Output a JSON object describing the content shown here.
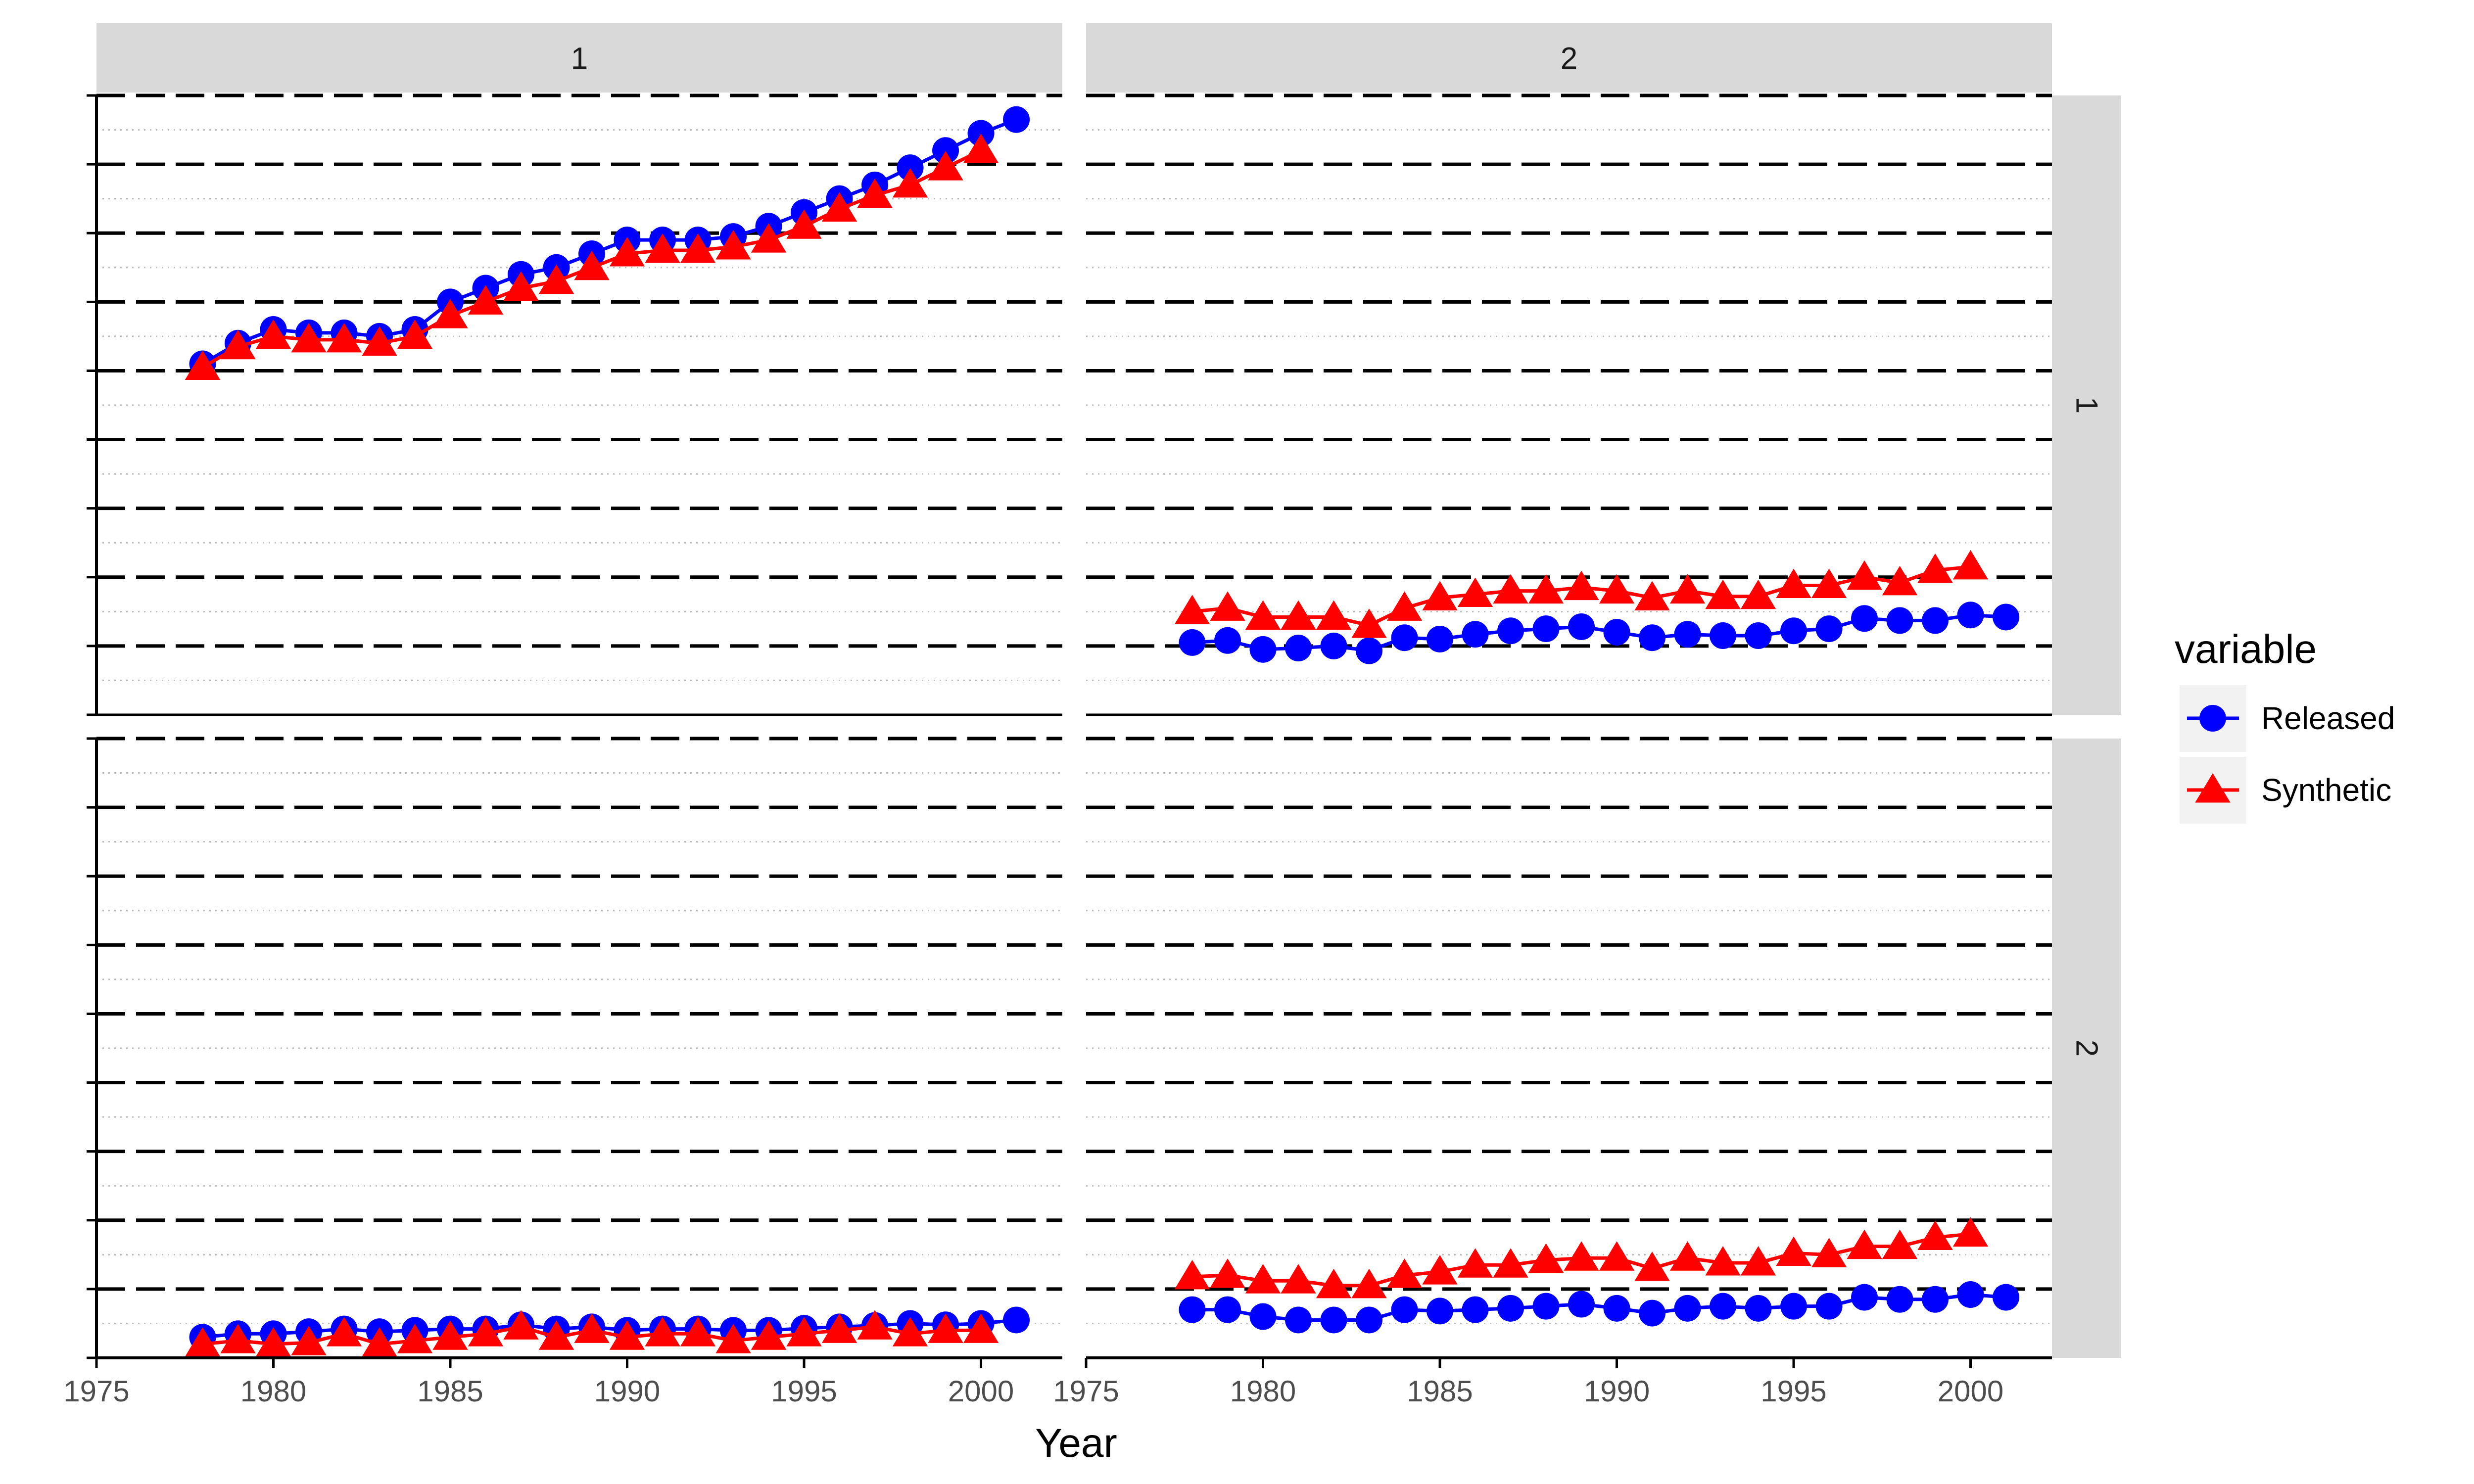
{
  "chart_data": {
    "type": "line",
    "xlabel": "Year",
    "ylabel": "",
    "xlim": [
      1975,
      2002.3
    ],
    "ylim": [
      0,
      9
    ],
    "x_ticks": [
      1975,
      1980,
      1985,
      1990,
      1995,
      2000
    ],
    "y_grid_major": [
      1,
      2,
      3,
      4,
      5,
      6,
      7,
      8,
      9
    ],
    "y_axis_tick_labels": "none",
    "grid": true,
    "legend": {
      "title": "variable",
      "placement": "right",
      "entries": [
        {
          "name": "Released",
          "color": "#0000ff",
          "marker": "circle"
        },
        {
          "name": "Synthetic",
          "color": "#ff0000",
          "marker": "triangle"
        }
      ]
    },
    "facet_columns": [
      "1",
      "2"
    ],
    "facet_rows": [
      "1",
      "2"
    ],
    "panels": [
      {
        "col": "1",
        "row": "1",
        "series": [
          {
            "name": "Released",
            "x": [
              1978,
              1979,
              1980,
              1981,
              1982,
              1983,
              1984,
              1985,
              1986,
              1987,
              1988,
              1989,
              1990,
              1991,
              1992,
              1993,
              1994,
              1995,
              1996,
              1997,
              1998,
              1999,
              2000,
              2001
            ],
            "values": [
              5.1,
              5.4,
              5.6,
              5.55,
              5.55,
              5.5,
              5.6,
              6.0,
              6.2,
              6.4,
              6.5,
              6.7,
              6.9,
              6.9,
              6.9,
              6.95,
              7.1,
              7.3,
              7.5,
              7.7,
              7.95,
              8.2,
              8.45,
              8.65
            ]
          },
          {
            "name": "Synthetic",
            "x": [
              1978,
              1979,
              1980,
              1981,
              1982,
              1983,
              1984,
              1985,
              1986,
              1987,
              1988,
              1989,
              1990,
              1991,
              1992,
              1993,
              1994,
              1995,
              1996,
              1997,
              1998,
              1999,
              2000
            ],
            "values": [
              5.05,
              5.35,
              5.5,
              5.45,
              5.45,
              5.4,
              5.5,
              5.8,
              6.0,
              6.2,
              6.3,
              6.5,
              6.7,
              6.75,
              6.75,
              6.8,
              6.9,
              7.1,
              7.35,
              7.55,
              7.7,
              7.95,
              8.2
            ]
          }
        ]
      },
      {
        "col": "2",
        "row": "1",
        "series": [
          {
            "name": "Released",
            "x": [
              1978,
              1979,
              1980,
              1981,
              1982,
              1983,
              1984,
              1985,
              1986,
              1987,
              1988,
              1989,
              1990,
              1991,
              1992,
              1993,
              1994,
              1995,
              1996,
              1997,
              1998,
              1999,
              2000,
              2001
            ],
            "values": [
              1.05,
              1.08,
              0.95,
              0.97,
              1.0,
              0.93,
              1.12,
              1.1,
              1.17,
              1.22,
              1.25,
              1.28,
              1.2,
              1.12,
              1.17,
              1.15,
              1.15,
              1.22,
              1.25,
              1.4,
              1.37,
              1.37,
              1.45,
              1.42
            ]
          },
          {
            "name": "Synthetic",
            "x": [
              1978,
              1979,
              1980,
              1981,
              1982,
              1983,
              1984,
              1985,
              1986,
              1987,
              1988,
              1989,
              1990,
              1991,
              1992,
              1993,
              1994,
              1995,
              1996,
              1997,
              1998,
              1999,
              2000
            ],
            "values": [
              1.5,
              1.55,
              1.42,
              1.42,
              1.42,
              1.3,
              1.55,
              1.7,
              1.75,
              1.8,
              1.8,
              1.85,
              1.8,
              1.7,
              1.8,
              1.72,
              1.72,
              1.88,
              1.88,
              2.0,
              1.92,
              2.1,
              2.15
            ]
          }
        ]
      },
      {
        "col": "1",
        "row": "2",
        "series": [
          {
            "name": "Released",
            "x": [
              1978,
              1979,
              1980,
              1981,
              1982,
              1983,
              1984,
              1985,
              1986,
              1987,
              1988,
              1989,
              1990,
              1991,
              1992,
              1993,
              1994,
              1995,
              1996,
              1997,
              1998,
              1999,
              2000,
              2001
            ],
            "values": [
              0.3,
              0.35,
              0.35,
              0.38,
              0.42,
              0.38,
              0.4,
              0.42,
              0.42,
              0.48,
              0.42,
              0.45,
              0.4,
              0.42,
              0.42,
              0.4,
              0.4,
              0.43,
              0.45,
              0.47,
              0.5,
              0.48,
              0.5,
              0.55
            ]
          },
          {
            "name": "Synthetic",
            "x": [
              1978,
              1979,
              1980,
              1981,
              1982,
              1983,
              1984,
              1985,
              1986,
              1987,
              1988,
              1989,
              1990,
              1991,
              1992,
              1993,
              1994,
              1995,
              1996,
              1997,
              1998,
              1999,
              2000
            ],
            "values": [
              0.2,
              0.25,
              0.2,
              0.22,
              0.35,
              0.2,
              0.25,
              0.3,
              0.35,
              0.45,
              0.3,
              0.4,
              0.3,
              0.35,
              0.35,
              0.25,
              0.3,
              0.35,
              0.4,
              0.45,
              0.35,
              0.4,
              0.4
            ]
          }
        ]
      },
      {
        "col": "2",
        "row": "2",
        "series": [
          {
            "name": "Released",
            "x": [
              1978,
              1979,
              1980,
              1981,
              1982,
              1983,
              1984,
              1985,
              1986,
              1987,
              1988,
              1989,
              1990,
              1991,
              1992,
              1993,
              1994,
              1995,
              1996,
              1997,
              1998,
              1999,
              2000,
              2001
            ],
            "values": [
              0.7,
              0.7,
              0.6,
              0.55,
              0.55,
              0.55,
              0.7,
              0.68,
              0.7,
              0.72,
              0.75,
              0.78,
              0.72,
              0.65,
              0.72,
              0.75,
              0.72,
              0.75,
              0.75,
              0.88,
              0.85,
              0.85,
              0.92,
              0.88
            ]
          },
          {
            "name": "Synthetic",
            "x": [
              1978,
              1979,
              1980,
              1981,
              1982,
              1983,
              1984,
              1985,
              1986,
              1987,
              1988,
              1989,
              1990,
              1991,
              1992,
              1993,
              1994,
              1995,
              1996,
              1997,
              1998,
              1999,
              2000
            ],
            "values": [
              1.18,
              1.2,
              1.12,
              1.12,
              1.05,
              1.05,
              1.2,
              1.25,
              1.35,
              1.35,
              1.42,
              1.45,
              1.45,
              1.3,
              1.45,
              1.38,
              1.38,
              1.52,
              1.5,
              1.62,
              1.62,
              1.75,
              1.8
            ]
          }
        ]
      }
    ]
  }
}
